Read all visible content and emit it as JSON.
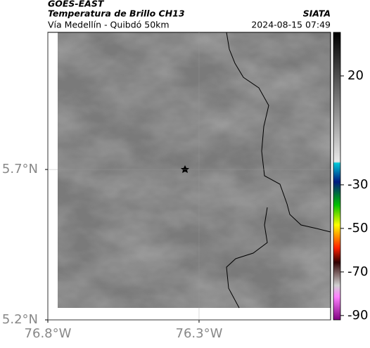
{
  "header": {
    "product": "GOES-EAST",
    "title": "Temperatura de Brillo CH13",
    "source": "SIATA",
    "route": "Vía Medellín - Quibdó 50km",
    "timestamp": "2024-08-15 07:49"
  },
  "map": {
    "xlim": [
      -76.8,
      -75.865
    ],
    "ylim": [
      5.2,
      6.156
    ],
    "xticks": [
      {
        "value": -76.8,
        "label": "76.8°W"
      },
      {
        "value": -76.3,
        "label": "76.3°W"
      }
    ],
    "yticks": [
      {
        "value": 5.7,
        "label": "5.7°N"
      },
      {
        "value": 5.2,
        "label": "5.2°N"
      }
    ],
    "grid": true
  },
  "colorbar": {
    "clim": [
      -92,
      40
    ],
    "ticks": [
      20,
      -30,
      -50,
      -70,
      -90
    ]
  }
}
